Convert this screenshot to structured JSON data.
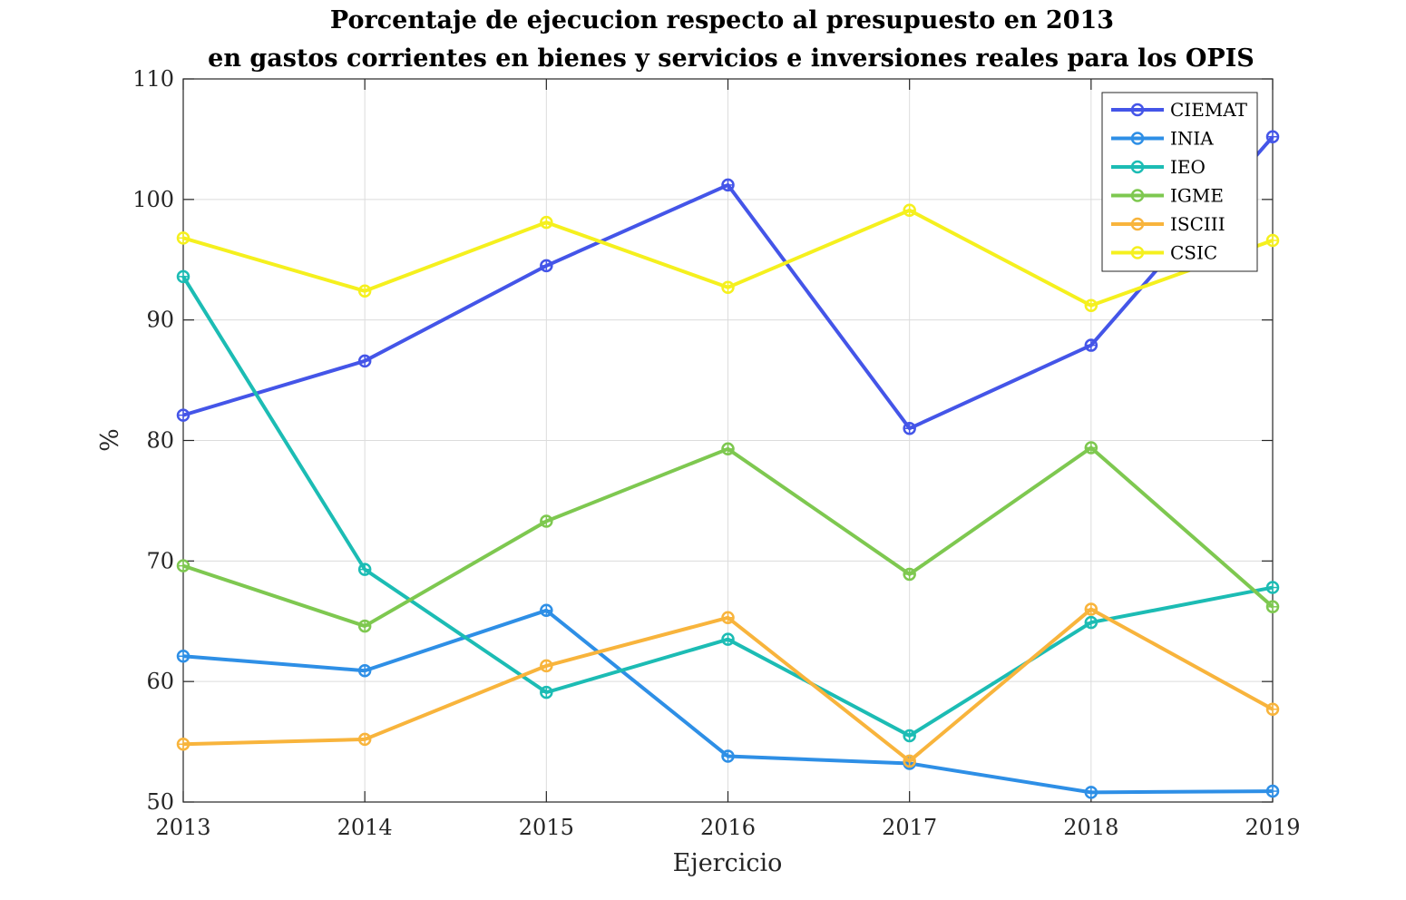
{
  "chart_data": {
    "type": "line",
    "title": [
      "Porcentaje de ejecucion respecto al presupuesto en 2013",
      "en gastos corrientes en bienes y servicios e inversiones reales para los OPIS"
    ],
    "xlabel": "Ejercicio",
    "ylabel": "%",
    "x": [
      2013,
      2014,
      2015,
      2016,
      2017,
      2018,
      2019
    ],
    "xticks": [
      "2013",
      "2014",
      "2015",
      "2016",
      "2017",
      "2018",
      "2019"
    ],
    "yticks": [
      "50",
      "60",
      "70",
      "80",
      "90",
      "100",
      "110"
    ],
    "ylim": [
      50,
      110
    ],
    "xlim": [
      2013,
      2019
    ],
    "grid": true,
    "legend_position": "top-right",
    "series": [
      {
        "name": "CIEMAT",
        "color": "#4455e8",
        "values": [
          82.1,
          86.6,
          94.5,
          101.2,
          81.0,
          87.9,
          105.2
        ]
      },
      {
        "name": "INIA",
        "color": "#2e8fe6",
        "values": [
          62.1,
          60.9,
          65.9,
          53.8,
          53.2,
          50.8,
          50.9
        ]
      },
      {
        "name": "IEO",
        "color": "#1cbcb4",
        "values": [
          93.6,
          69.3,
          59.1,
          63.5,
          55.5,
          64.9,
          67.8
        ]
      },
      {
        "name": "IGME",
        "color": "#7ec850",
        "values": [
          69.6,
          64.6,
          73.3,
          79.3,
          68.9,
          79.4,
          66.2
        ]
      },
      {
        "name": "ISCIII",
        "color": "#f8b43c",
        "values": [
          54.8,
          55.2,
          61.3,
          65.3,
          53.4,
          66.0,
          57.7
        ]
      },
      {
        "name": "CSIC",
        "color": "#f5f01e",
        "values": [
          96.8,
          92.4,
          98.1,
          92.7,
          99.1,
          91.2,
          96.6
        ]
      }
    ]
  }
}
